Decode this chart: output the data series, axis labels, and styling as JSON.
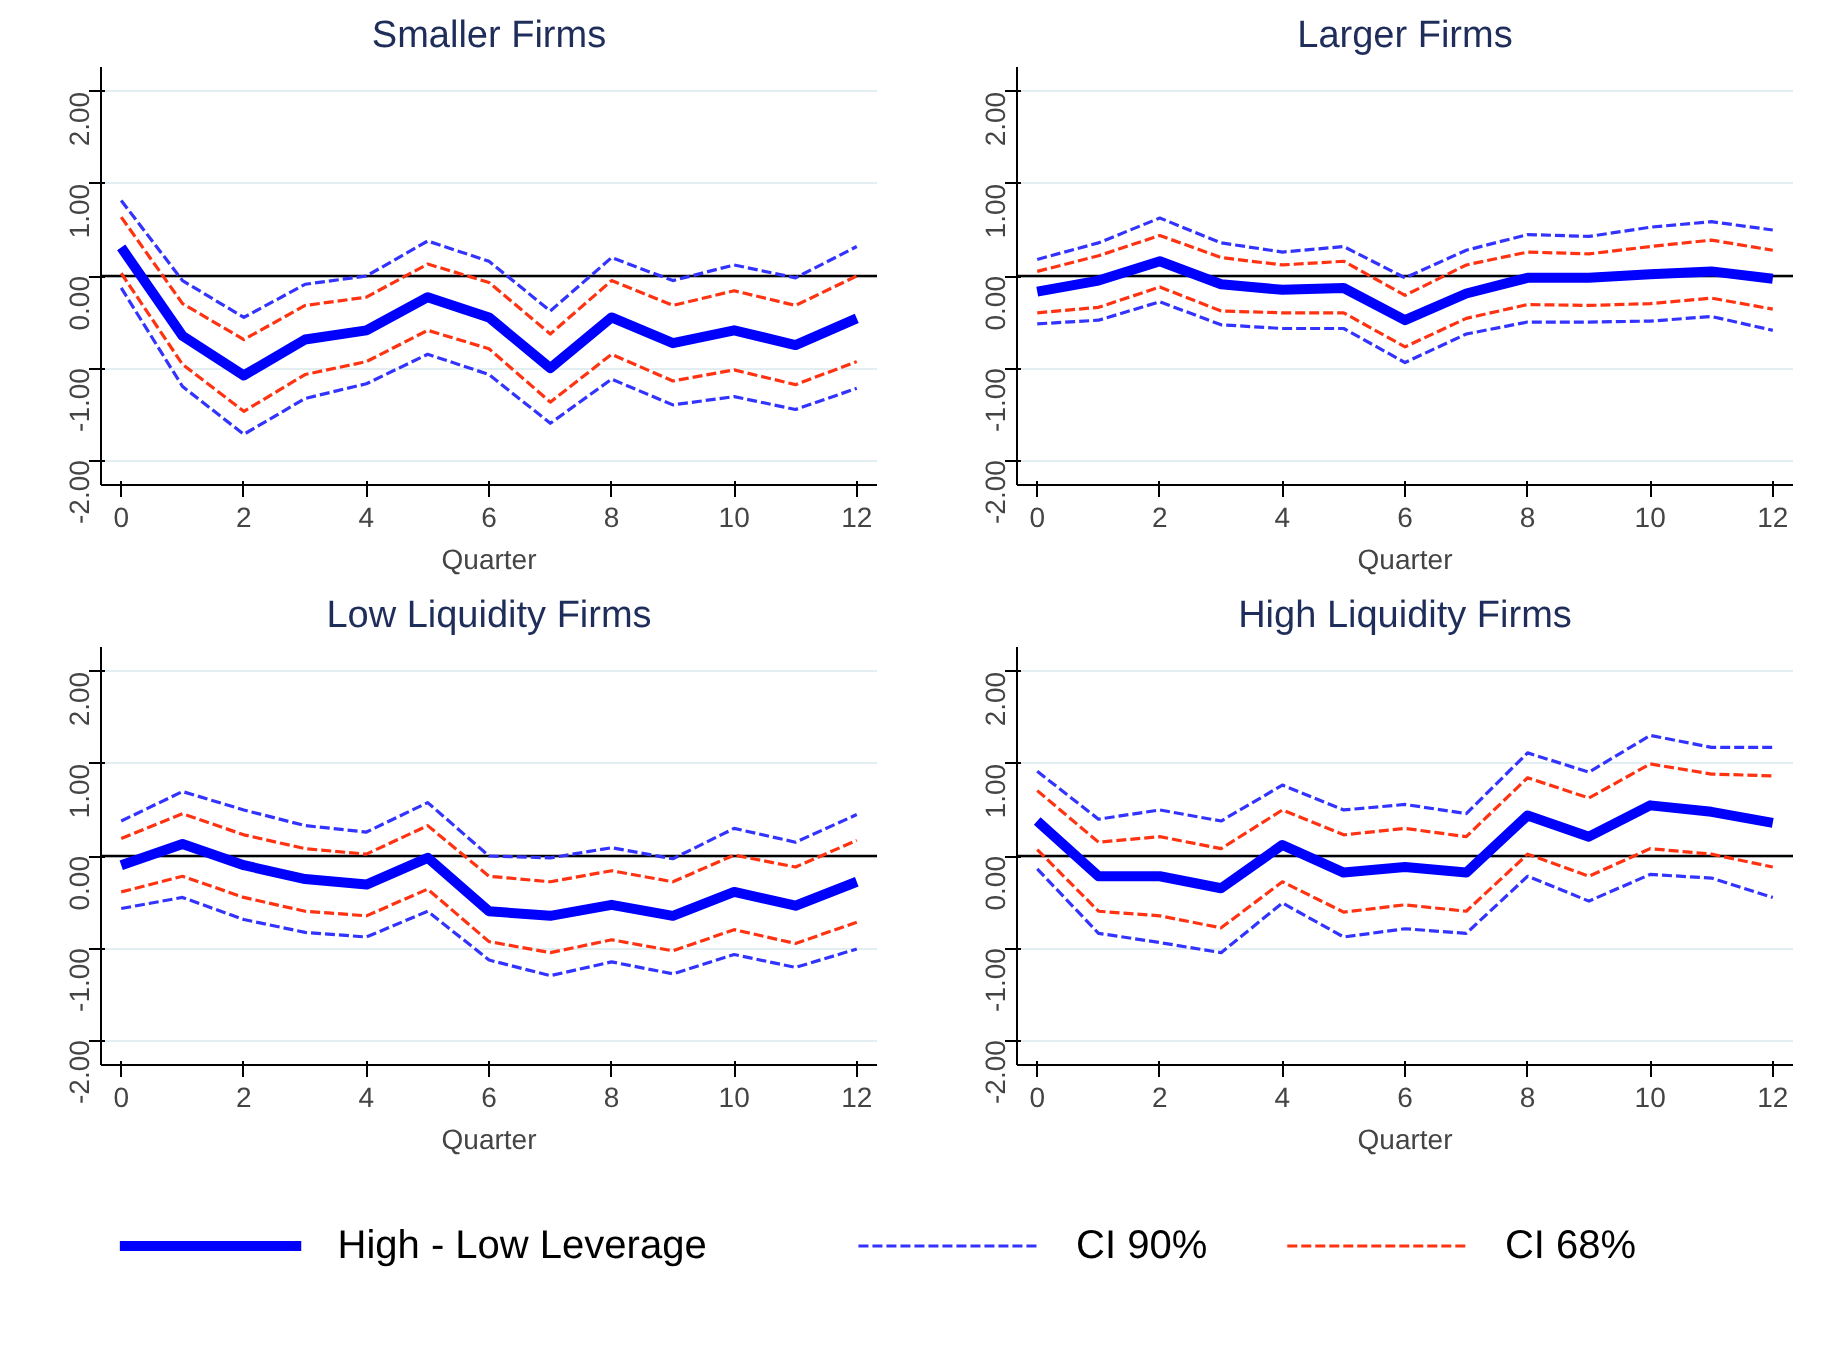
{
  "chart_data": [
    {
      "type": "line",
      "title": "Smaller Firms",
      "xlabel": "Quarter",
      "x": [
        0,
        1,
        2,
        3,
        4,
        5,
        6,
        7,
        8,
        9,
        10,
        11,
        12
      ],
      "xlim": [
        -0.33,
        12.33
      ],
      "xticks": [
        0,
        2,
        4,
        6,
        8,
        10,
        12
      ],
      "ylim": [
        -2.27,
        2.27
      ],
      "yticks": [
        {
          "value": -2,
          "label": "-2.00"
        },
        {
          "value": -1,
          "label": "-1.00"
        },
        {
          "value": 0,
          "label": "0.00"
        },
        {
          "value": 1,
          "label": "1.00"
        },
        {
          "value": 2,
          "label": "2.00"
        }
      ],
      "grid": "y",
      "legend": "bottom",
      "ref_lines": [
        {
          "axis": "y",
          "value": 0,
          "color": "#000000"
        }
      ],
      "series": [
        {
          "name": "High - Low Leverage",
          "color": "#0000ff",
          "line_style": "solid",
          "values": [
            0.31,
            -0.65,
            -1.08,
            -0.69,
            -0.59,
            -0.23,
            -0.45,
            -1.0,
            -0.45,
            -0.73,
            -0.59,
            -0.75,
            -0.46
          ]
        },
        {
          "name": "CI 90%",
          "color": "#3333ff",
          "line_style": "dashed",
          "values": [
            0.82,
            -0.05,
            -0.45,
            -0.09,
            0.0,
            0.38,
            0.16,
            -0.38,
            0.2,
            -0.05,
            0.12,
            -0.02,
            0.32
          ]
        },
        {
          "color": "#3333ff",
          "line_style": "dashed",
          "values": [
            -0.13,
            -1.2,
            -1.72,
            -1.33,
            -1.17,
            -0.85,
            -1.07,
            -1.6,
            -1.12,
            -1.4,
            -1.31,
            -1.45,
            -1.22
          ]
        },
        {
          "name": "CI 68%",
          "color": "#ff3311",
          "line_style": "dashed",
          "values": [
            0.64,
            -0.3,
            -0.69,
            -0.32,
            -0.23,
            0.13,
            -0.07,
            -0.63,
            -0.05,
            -0.32,
            -0.16,
            -0.32,
            0.0
          ]
        },
        {
          "color": "#ff3311",
          "line_style": "dashed",
          "values": [
            0.03,
            -0.96,
            -1.47,
            -1.07,
            -0.93,
            -0.59,
            -0.79,
            -1.37,
            -0.85,
            -1.14,
            -1.02,
            -1.18,
            -0.93
          ]
        }
      ]
    },
    {
      "type": "line",
      "title": "Larger Firms",
      "xlabel": "Quarter",
      "x": [
        0,
        1,
        2,
        3,
        4,
        5,
        6,
        7,
        8,
        9,
        10,
        11,
        12
      ],
      "xlim": [
        -0.33,
        12.33
      ],
      "xticks": [
        0,
        2,
        4,
        6,
        8,
        10,
        12
      ],
      "ylim": [
        -2.27,
        2.27
      ],
      "yticks": [
        {
          "value": -2,
          "label": "-2.00"
        },
        {
          "value": -1,
          "label": "-1.00"
        },
        {
          "value": 0,
          "label": "0.00"
        },
        {
          "value": 1,
          "label": "1.00"
        },
        {
          "value": 2,
          "label": "2.00"
        }
      ],
      "grid": "y",
      "ref_lines": [
        {
          "axis": "y",
          "value": 0,
          "color": "#000000"
        }
      ],
      "series": [
        {
          "color": "#0000ff",
          "line_style": "solid",
          "values": [
            -0.17,
            -0.05,
            0.16,
            -0.09,
            -0.15,
            -0.13,
            -0.48,
            -0.19,
            -0.02,
            -0.02,
            0.02,
            0.05,
            -0.03
          ]
        },
        {
          "color": "#3333ff",
          "line_style": "dashed",
          "values": [
            0.18,
            0.36,
            0.63,
            0.36,
            0.26,
            0.32,
            -0.02,
            0.28,
            0.45,
            0.43,
            0.53,
            0.59,
            0.5
          ]
        },
        {
          "color": "#3333ff",
          "line_style": "dashed",
          "values": [
            -0.52,
            -0.48,
            -0.28,
            -0.53,
            -0.57,
            -0.57,
            -0.94,
            -0.63,
            -0.5,
            -0.5,
            -0.49,
            -0.44,
            -0.59
          ]
        },
        {
          "color": "#ff3311",
          "line_style": "dashed",
          "values": [
            0.05,
            0.22,
            0.44,
            0.2,
            0.12,
            0.16,
            -0.21,
            0.12,
            0.26,
            0.24,
            0.32,
            0.39,
            0.28
          ]
        },
        {
          "color": "#ff3311",
          "line_style": "dashed",
          "values": [
            -0.4,
            -0.34,
            -0.12,
            -0.38,
            -0.4,
            -0.4,
            -0.77,
            -0.46,
            -0.31,
            -0.32,
            -0.3,
            -0.24,
            -0.36
          ]
        }
      ]
    },
    {
      "type": "line",
      "title": "Low Liquidity Firms",
      "xlabel": "Quarter",
      "x": [
        0,
        1,
        2,
        3,
        4,
        5,
        6,
        7,
        8,
        9,
        10,
        11,
        12
      ],
      "xlim": [
        -0.33,
        12.33
      ],
      "xticks": [
        0,
        2,
        4,
        6,
        8,
        10,
        12
      ],
      "ylim": [
        -2.27,
        2.27
      ],
      "yticks": [
        {
          "value": -2,
          "label": "-2.00"
        },
        {
          "value": -1,
          "label": "-1.00"
        },
        {
          "value": 0,
          "label": "0.00"
        },
        {
          "value": 1,
          "label": "1.00"
        },
        {
          "value": 2,
          "label": "2.00"
        }
      ],
      "grid": "y",
      "ref_lines": [
        {
          "axis": "y",
          "value": 0,
          "color": "#000000"
        }
      ],
      "series": [
        {
          "color": "#0000ff",
          "line_style": "solid",
          "values": [
            -0.1,
            0.13,
            -0.1,
            -0.25,
            -0.31,
            -0.02,
            -0.6,
            -0.65,
            -0.53,
            -0.65,
            -0.39,
            -0.54,
            -0.28
          ]
        },
        {
          "color": "#3333ff",
          "line_style": "dashed",
          "values": [
            0.38,
            0.7,
            0.5,
            0.33,
            0.26,
            0.58,
            0.0,
            -0.02,
            0.09,
            -0.03,
            0.3,
            0.15,
            0.45
          ]
        },
        {
          "color": "#3333ff",
          "line_style": "dashed",
          "values": [
            -0.57,
            -0.45,
            -0.69,
            -0.83,
            -0.88,
            -0.6,
            -1.13,
            -1.3,
            -1.15,
            -1.28,
            -1.07,
            -1.21,
            -1.01
          ]
        },
        {
          "color": "#ff3311",
          "line_style": "dashed",
          "values": [
            0.19,
            0.46,
            0.23,
            0.08,
            0.02,
            0.33,
            -0.22,
            -0.28,
            -0.16,
            -0.28,
            0.01,
            -0.12,
            0.17
          ]
        },
        {
          "color": "#ff3311",
          "line_style": "dashed",
          "values": [
            -0.39,
            -0.22,
            -0.45,
            -0.6,
            -0.65,
            -0.36,
            -0.93,
            -1.05,
            -0.91,
            -1.03,
            -0.8,
            -0.95,
            -0.72
          ]
        }
      ]
    },
    {
      "type": "line",
      "title": "High Liquidity Firms",
      "xlabel": "Quarter",
      "x": [
        0,
        1,
        2,
        3,
        4,
        5,
        6,
        7,
        8,
        9,
        10,
        11,
        12
      ],
      "xlim": [
        -0.33,
        12.33
      ],
      "xticks": [
        0,
        2,
        4,
        6,
        8,
        10,
        12
      ],
      "ylim": [
        -2.27,
        2.27
      ],
      "yticks": [
        {
          "value": -2,
          "label": "-2.00"
        },
        {
          "value": -1,
          "label": "-1.00"
        },
        {
          "value": 0,
          "label": "0.00"
        },
        {
          "value": 1,
          "label": "1.00"
        },
        {
          "value": 2,
          "label": "2.00"
        }
      ],
      "grid": "y",
      "ref_lines": [
        {
          "axis": "y",
          "value": 0,
          "color": "#000000"
        }
      ],
      "series": [
        {
          "color": "#0000ff",
          "line_style": "solid",
          "values": [
            0.38,
            -0.22,
            -0.22,
            -0.35,
            0.12,
            -0.18,
            -0.12,
            -0.18,
            0.44,
            0.21,
            0.55,
            0.48,
            0.36
          ]
        },
        {
          "color": "#3333ff",
          "line_style": "dashed",
          "values": [
            0.92,
            0.4,
            0.5,
            0.38,
            0.77,
            0.5,
            0.56,
            0.46,
            1.12,
            0.91,
            1.31,
            1.18,
            1.18
          ]
        },
        {
          "color": "#3333ff",
          "line_style": "dashed",
          "values": [
            -0.14,
            -0.84,
            -0.94,
            -1.05,
            -0.51,
            -0.88,
            -0.79,
            -0.84,
            -0.22,
            -0.49,
            -0.2,
            -0.24,
            -0.45
          ]
        },
        {
          "color": "#ff3311",
          "line_style": "dashed",
          "values": [
            0.71,
            0.15,
            0.21,
            0.08,
            0.5,
            0.23,
            0.3,
            0.21,
            0.85,
            0.63,
            1.0,
            0.89,
            0.87
          ]
        },
        {
          "color": "#ff3311",
          "line_style": "dashed",
          "values": [
            0.07,
            -0.6,
            -0.65,
            -0.78,
            -0.28,
            -0.61,
            -0.53,
            -0.6,
            0.02,
            -0.22,
            0.08,
            0.02,
            -0.12
          ]
        }
      ]
    }
  ]
}
